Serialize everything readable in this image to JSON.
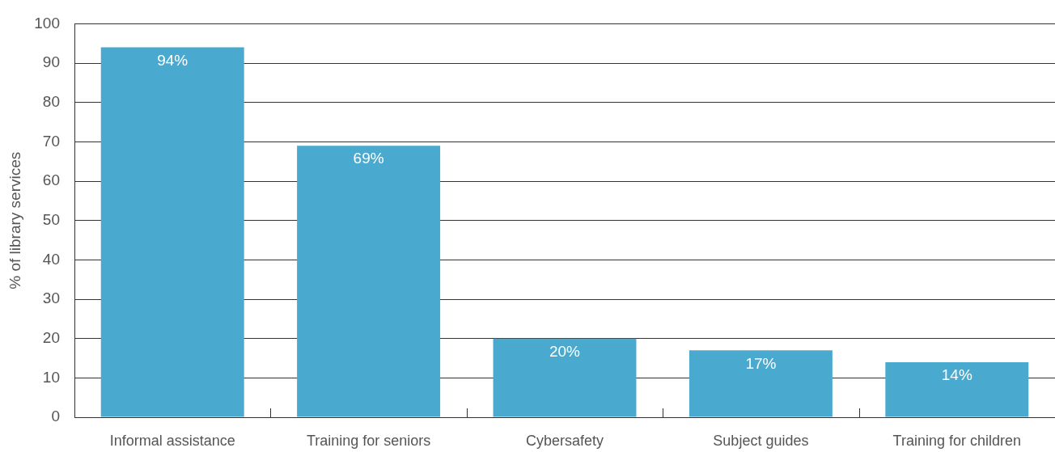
{
  "chart_data": {
    "type": "bar",
    "ylabel": "% of library services",
    "categories": [
      "Informal assistance",
      "Training for seniors",
      "Cybersafety",
      "Subject guides",
      "Training for children"
    ],
    "values": [
      94,
      69,
      20,
      17,
      14
    ],
    "value_labels": [
      "94%",
      "69%",
      "20%",
      "17%",
      "14%"
    ],
    "color": "#49a9ce",
    "ylim": [
      0,
      100
    ],
    "yticks": [
      0,
      10,
      20,
      30,
      40,
      50,
      60,
      70,
      80,
      90,
      100
    ],
    "grid": "y",
    "legend": false
  }
}
